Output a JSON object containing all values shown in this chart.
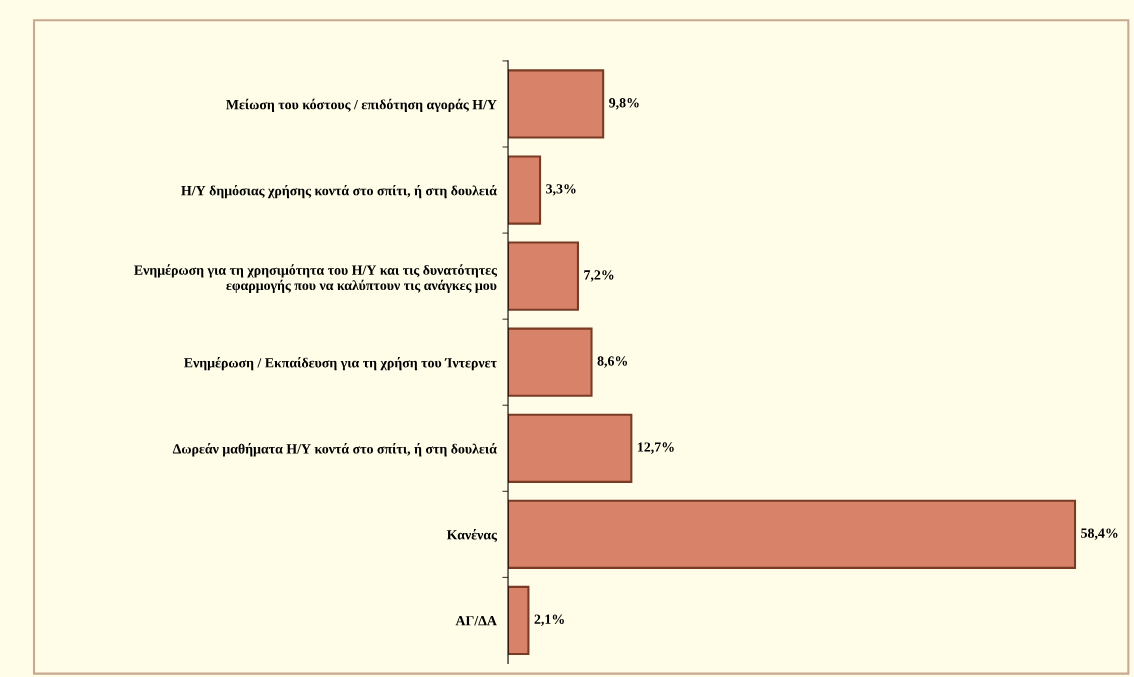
{
  "chart_data": {
    "type": "bar",
    "orientation": "horizontal",
    "categories": [
      "Μείωση του κόστους / επιδότηση αγοράς Η/Υ",
      "Η/Υ δημόσιας χρήσης κοντά στο σπίτι, ή στη δουλειά",
      "Ενημέρωση για τη χρησιμότητα του Η/Υ και τις δυνατότητες\nεφαρμογής που να καλύπτουν τις ανάγκες μου",
      "Ενημέρωση / Εκπαίδευση για τη χρήση του Ίντερνετ",
      "Δωρεάν μαθήματα Η/Υ κοντά στο σπίτι, ή στη δουλειά",
      "Κανένας",
      "ΑΓ/ΔΑ"
    ],
    "values": [
      9.8,
      3.3,
      7.2,
      8.6,
      12.7,
      58.4,
      2.1
    ],
    "value_labels": [
      "9,8%",
      "3,3%",
      "7,2%",
      "8,6%",
      "12,7%",
      "58,4%",
      "2,1%"
    ],
    "color": "#d9826a",
    "tick_labels": "y"
  }
}
